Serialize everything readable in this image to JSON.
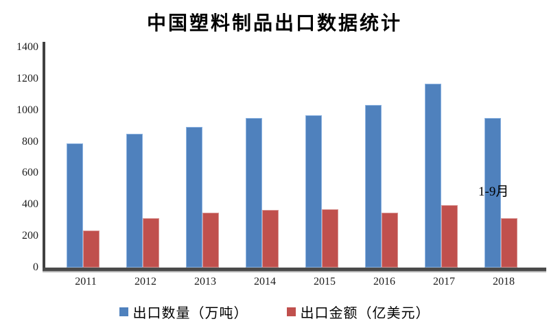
{
  "title": "中国塑料制品出口数据统计",
  "annotation": "1-9月",
  "legend": [
    {
      "label": "出口数量（万吨）",
      "color": "#4F81BD"
    },
    {
      "label": "出口金额（亿美元）",
      "color": "#C0504D"
    }
  ],
  "colors": {
    "bar_blue": "#4F81BD",
    "bar_blue_border": "#8DB4E2",
    "bar_red": "#C0504D",
    "bar_red_border": "#D99694",
    "axis_line": "#414141",
    "text": "#1c1c1c",
    "background": "#ffffff"
  },
  "chart_data": {
    "type": "bar",
    "title": "中国塑料制品出口数据统计",
    "categories": [
      "2011",
      "2012",
      "2013",
      "2014",
      "2015",
      "2016",
      "2017",
      "2018"
    ],
    "series": [
      {
        "name": "出口数量（万吨）",
        "color": "#4F81BD",
        "values": [
          790,
          850,
          895,
          950,
          970,
          1035,
          1170,
          950
        ]
      },
      {
        "name": "出口金额（亿美元）",
        "color": "#C0504D",
        "values": [
          235,
          315,
          350,
          365,
          370,
          350,
          395,
          315
        ]
      }
    ],
    "xlabel": "",
    "ylabel": "",
    "ylim": [
      0,
      1400
    ],
    "y_ticks": [
      0,
      200,
      400,
      600,
      800,
      1000,
      1200,
      1400
    ],
    "grid": false,
    "legend_position": "bottom",
    "annotation": {
      "text": "1-9月",
      "category": "2018",
      "series": "出口数量（万吨）",
      "note": "2018 data covers January–September only"
    }
  }
}
